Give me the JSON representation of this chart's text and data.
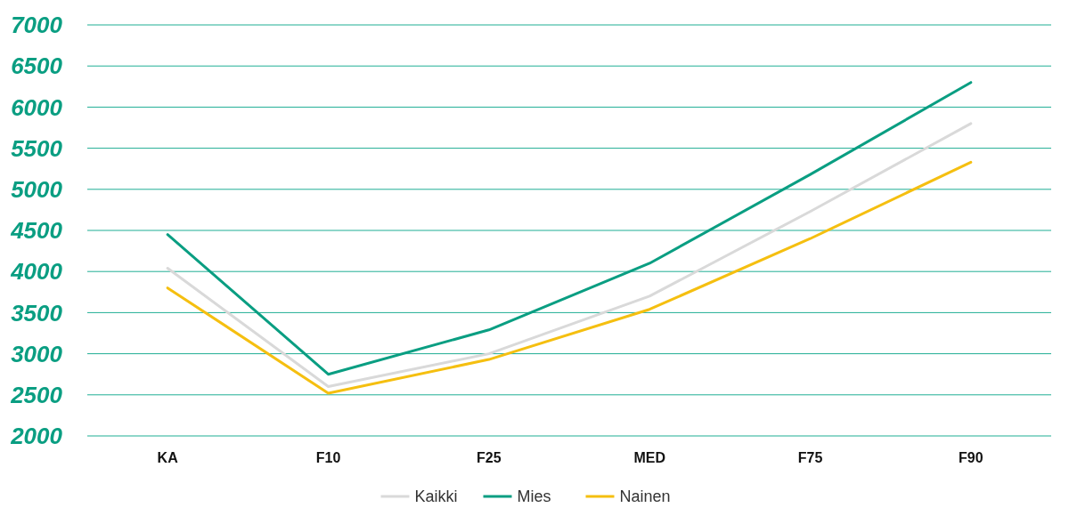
{
  "chart_data": {
    "type": "line",
    "categories": [
      "KA",
      "F10",
      "F25",
      "MED",
      "F75",
      "F90"
    ],
    "series": [
      {
        "name": "Kaikki",
        "color": "#d9d9d9",
        "values": [
          4040,
          2600,
          3000,
          3700,
          4730,
          5800
        ]
      },
      {
        "name": "Mies",
        "color": "#0a9e82",
        "values": [
          4450,
          2750,
          3290,
          4100,
          5180,
          6300
        ]
      },
      {
        "name": "Nainen",
        "color": "#f5bf10",
        "values": [
          3800,
          2520,
          2930,
          3540,
          4400,
          5330
        ]
      }
    ],
    "ylim": [
      2000,
      7000
    ],
    "yticks": [
      2000,
      2500,
      3000,
      3500,
      4000,
      4500,
      5000,
      5500,
      6000,
      6500,
      7000
    ],
    "grid": "y",
    "legend": "bottom",
    "marker": "none",
    "line_style": "solid"
  }
}
